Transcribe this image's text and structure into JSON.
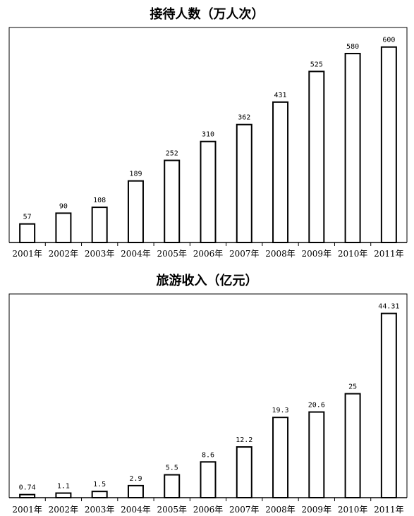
{
  "chart_data": [
    {
      "type": "bar",
      "title": "接待人数（万人次）",
      "categories": [
        "2001年",
        "2002年",
        "2003年",
        "2004年",
        "2005年",
        "2006年",
        "2007年",
        "2008年",
        "2009年",
        "2010年",
        "2011年"
      ],
      "values": [
        57,
        90,
        108,
        189,
        252,
        310,
        362,
        431,
        525,
        580,
        600
      ],
      "value_labels": [
        "57",
        "90",
        "108",
        "189",
        "252",
        "310",
        "362",
        "431",
        "525",
        "580",
        "600"
      ],
      "ylim": [
        0,
        660
      ],
      "grid": false,
      "legend": "none"
    },
    {
      "type": "bar",
      "title": "旅游收入（亿元）",
      "categories": [
        "2001年",
        "2002年",
        "2003年",
        "2004年",
        "2005年",
        "2006年",
        "2007年",
        "2008年",
        "2009年",
        "2010年",
        "2011年"
      ],
      "values": [
        0.74,
        1.1,
        1.5,
        2.9,
        5.5,
        8.6,
        12.2,
        19.3,
        20.6,
        25,
        44.31
      ],
      "value_labels": [
        "0.74",
        "1.1",
        "1.5",
        "2.9",
        "5.5",
        "8.6",
        "12.2",
        "19.3",
        "20.6",
        "25",
        "44.31"
      ],
      "ylim": [
        0,
        49
      ],
      "grid": false,
      "legend": "none"
    }
  ]
}
